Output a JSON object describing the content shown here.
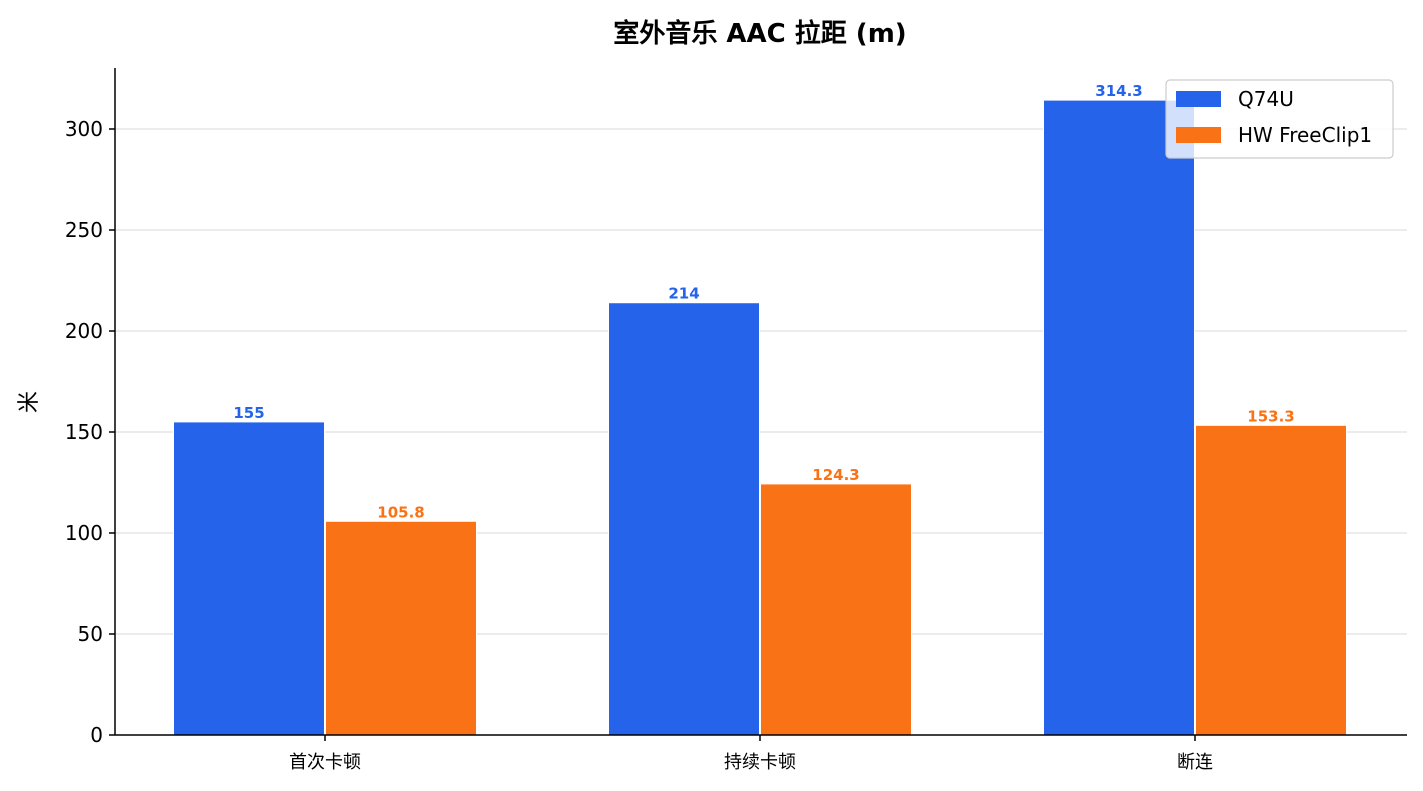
{
  "chart_data": {
    "type": "bar",
    "title": "室外音乐 AAC 拉距 (m)",
    "xlabel": "",
    "ylabel": "米",
    "categories": [
      "首次卡顿",
      "持续卡顿",
      "断连"
    ],
    "series": [
      {
        "name": "Q74U",
        "values": [
          155,
          214,
          314.3
        ],
        "labels": [
          "155",
          "214",
          "314.3"
        ],
        "color": "#2563eb"
      },
      {
        "name": "HW FreeClip1",
        "values": [
          105.8,
          124.3,
          153.3
        ],
        "labels": [
          "105.8",
          "124.3",
          "153.3"
        ],
        "color": "#f97316"
      }
    ],
    "ylim": [
      0,
      330
    ],
    "yticks": [
      0,
      50,
      100,
      150,
      200,
      250,
      300
    ],
    "grid": "horizontal",
    "legend_position": "top-right"
  }
}
